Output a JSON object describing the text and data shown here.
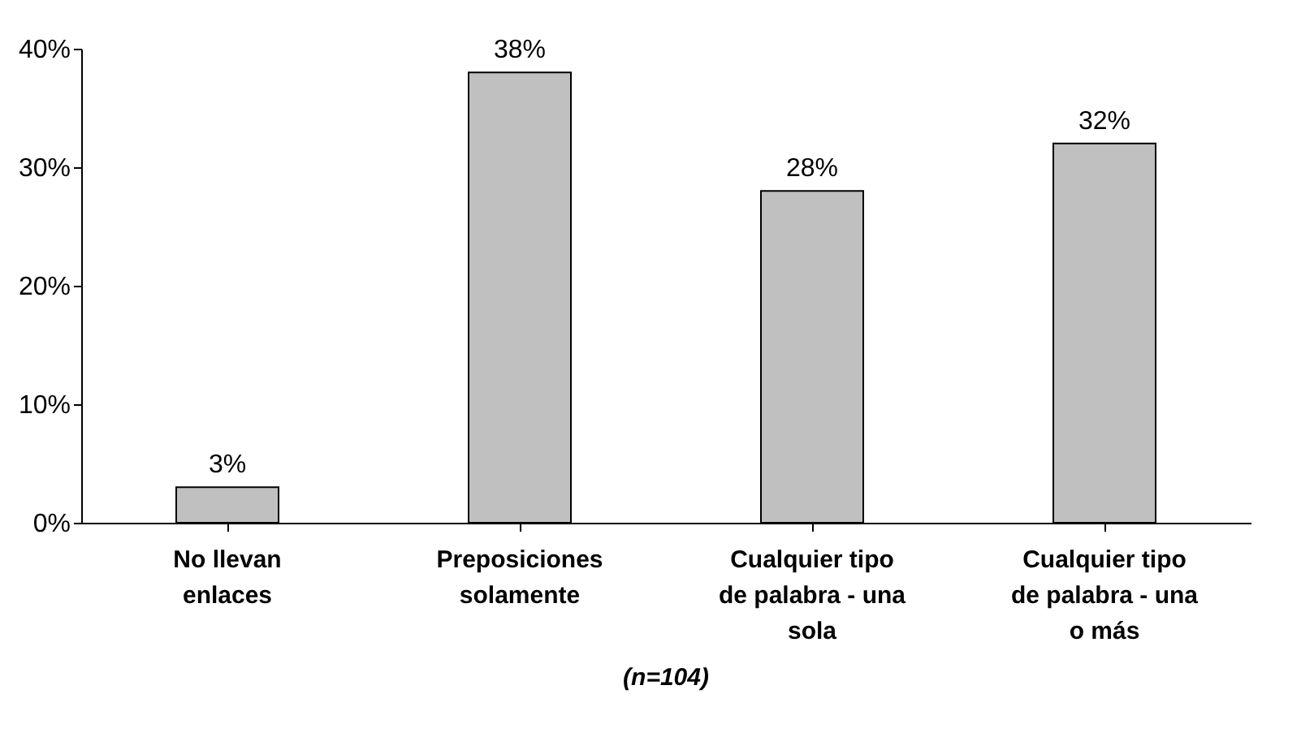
{
  "chart_data": {
    "type": "bar",
    "categories": [
      "No llevan enlaces",
      "Preposiciones solamente",
      "Cualquier tipo de palabra - una sola",
      "Cualquier tipo de palabra - una o más"
    ],
    "values": [
      3,
      38,
      28,
      32
    ],
    "color": "#c0c0c0",
    "value_labels": [
      "3%",
      "38%",
      "28%",
      "32%"
    ],
    "ylim": [
      0,
      40
    ],
    "yticks": [
      {
        "value": 0,
        "label": "0%"
      },
      {
        "value": 10,
        "label": "10%"
      },
      {
        "value": 20,
        "label": "20%"
      },
      {
        "value": 30,
        "label": "30%"
      },
      {
        "value": 40,
        "label": "40%"
      }
    ],
    "grid": false,
    "annotations": [
      "(n=104)"
    ]
  }
}
